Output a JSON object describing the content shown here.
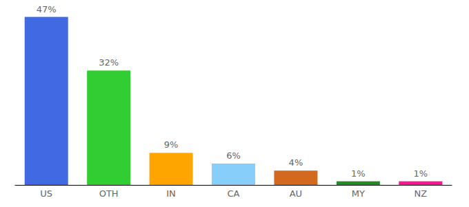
{
  "chart_data": {
    "type": "bar",
    "categories": [
      "US",
      "OTH",
      "IN",
      "CA",
      "AU",
      "MY",
      "NZ"
    ],
    "values": [
      47,
      32,
      9,
      6,
      4,
      1,
      1
    ],
    "value_labels": [
      "47%",
      "32%",
      "9%",
      "6%",
      "4%",
      "1%",
      "1%"
    ],
    "colors": [
      "#4169e1",
      "#32cd32",
      "#ffa500",
      "#87cefa",
      "#d2691e",
      "#228b22",
      "#ff1493"
    ],
    "ylim": [
      0,
      50
    ],
    "yticks": [
      0,
      50
    ],
    "grid": false,
    "data_labels": true,
    "tick_labels": "x"
  }
}
